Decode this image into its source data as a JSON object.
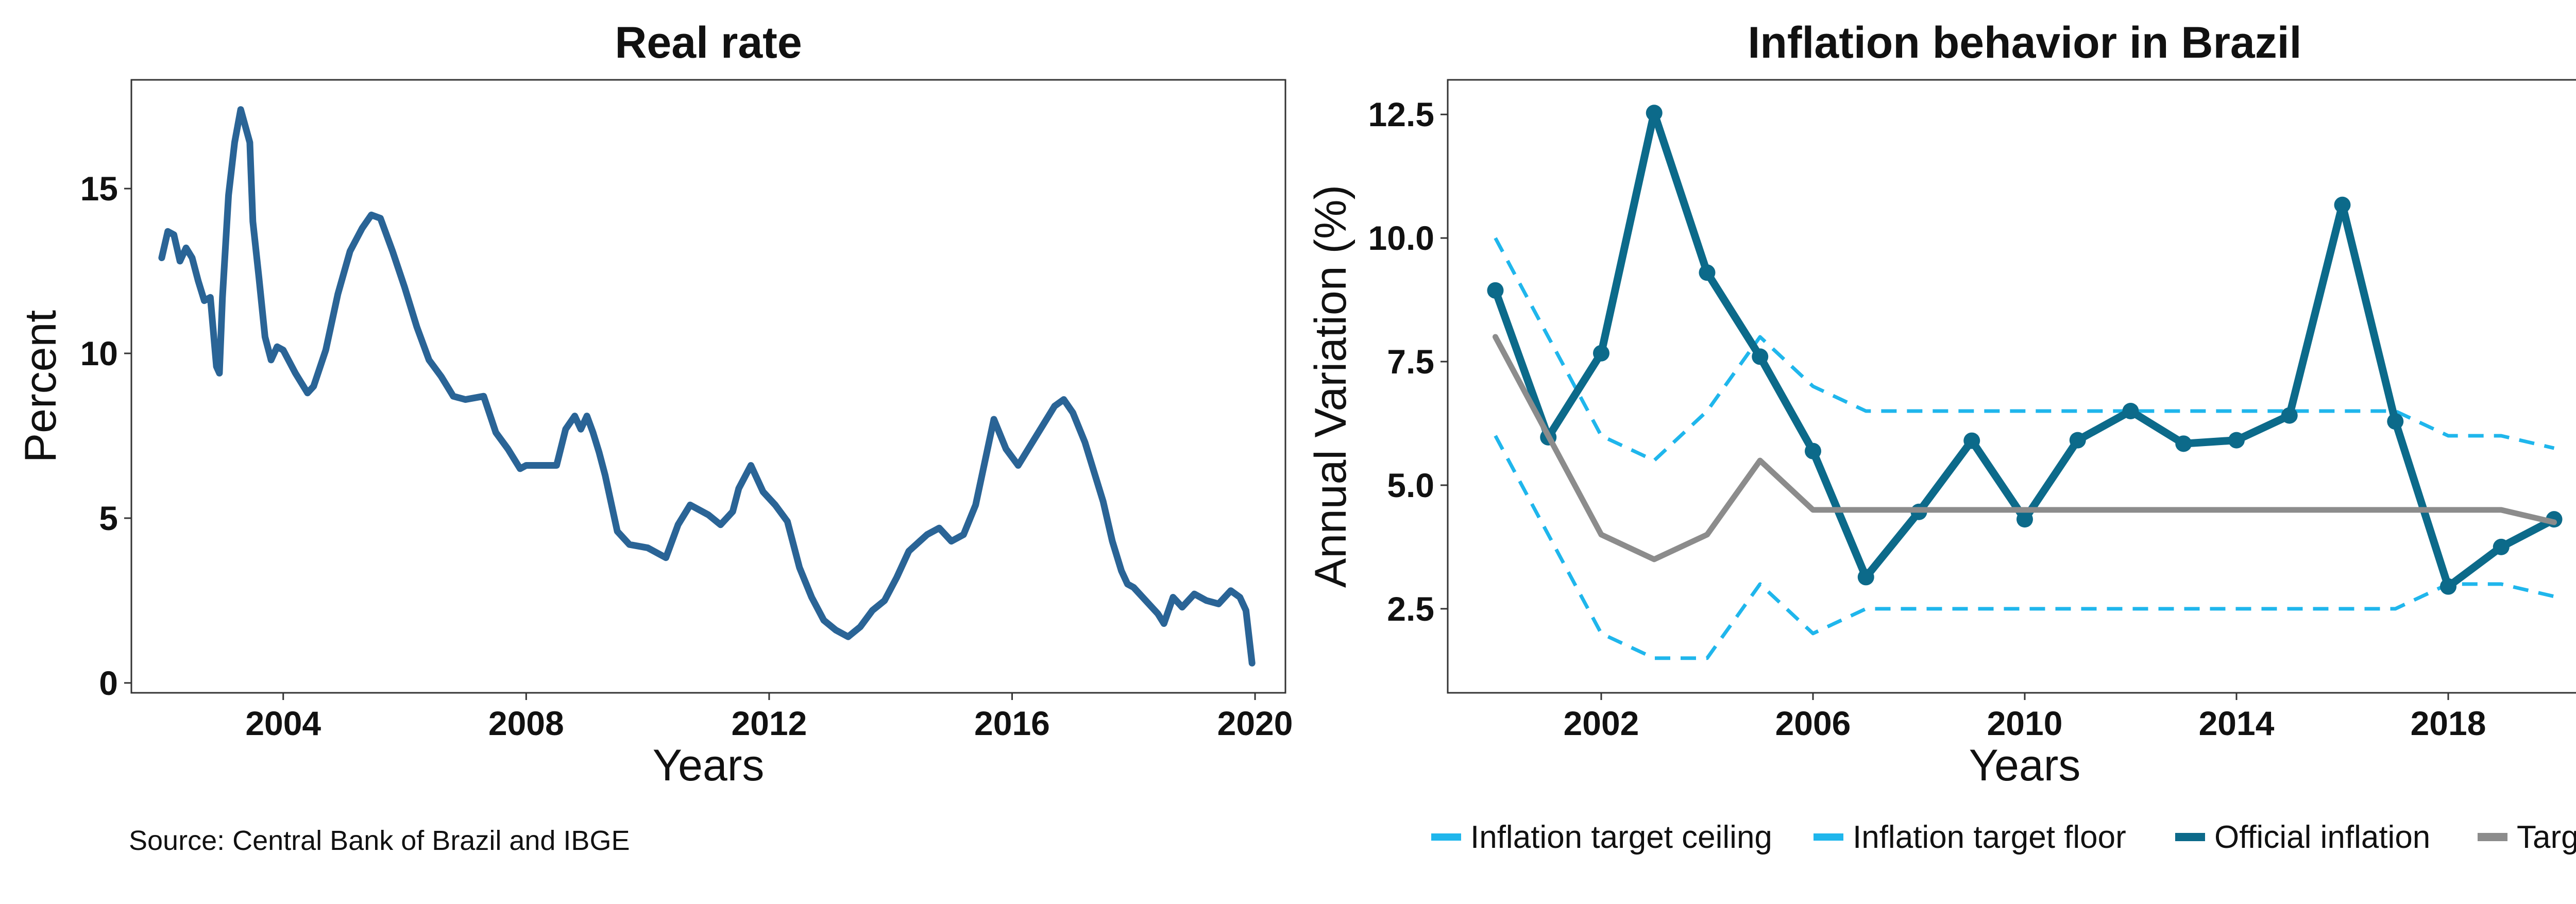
{
  "chart_data": [
    {
      "type": "line",
      "title": "Real rate",
      "xlabel": "Years",
      "ylabel": "Percent",
      "xlim": [
        2001.5,
        2020.5
      ],
      "ylim": [
        -0.3,
        18.3
      ],
      "xticks": [
        2004,
        2008,
        2012,
        2016,
        2020
      ],
      "yticks": [
        0,
        5,
        10,
        15
      ],
      "grid": false,
      "color": "#2a6496",
      "source": "Source: Central Bank of Brazil and IBGE",
      "series": [
        {
          "x": [
            2002.0,
            2002.1,
            2002.2,
            2002.3,
            2002.4,
            2002.5,
            2002.6,
            2002.7,
            2002.8,
            2002.9,
            2002.95,
            2003.0,
            2003.1,
            2003.2,
            2003.3,
            2003.45,
            2003.5,
            2003.6,
            2003.7,
            2003.8,
            2003.9,
            2004.0,
            2004.2,
            2004.4,
            2004.5,
            2004.7,
            2004.9,
            2005.1,
            2005.3,
            2005.45,
            2005.6,
            2005.8,
            2006.0,
            2006.2,
            2006.4,
            2006.6,
            2006.8,
            2007.0,
            2007.3,
            2007.5,
            2007.7,
            2007.9,
            2008.0,
            2008.2,
            2008.5,
            2008.65,
            2008.8,
            2008.9,
            2009.0,
            2009.1,
            2009.2,
            2009.3,
            2009.5,
            2009.7,
            2010.0,
            2010.3,
            2010.5,
            2010.7,
            2011.0,
            2011.2,
            2011.4,
            2011.5,
            2011.7,
            2011.9,
            2012.1,
            2012.3,
            2012.5,
            2012.7,
            2012.9,
            2013.1,
            2013.3,
            2013.5,
            2013.7,
            2013.9,
            2014.1,
            2014.3,
            2014.6,
            2014.8,
            2015.0,
            2015.2,
            2015.4,
            2015.55,
            2015.7,
            2015.9,
            2016.1,
            2016.3,
            2016.5,
            2016.7,
            2016.85,
            2017.0,
            2017.2,
            2017.4,
            2017.5,
            2017.65,
            2017.8,
            2017.9,
            2018.0,
            2018.2,
            2018.4,
            2018.5,
            2018.65,
            2018.8,
            2019.0,
            2019.2,
            2019.4,
            2019.6,
            2019.75,
            2019.85,
            2019.95
          ],
          "y": [
            12.9,
            13.7,
            13.6,
            12.8,
            13.2,
            12.9,
            12.2,
            11.6,
            11.7,
            9.6,
            9.4,
            11.7,
            14.8,
            16.4,
            17.4,
            16.4,
            14.0,
            12.3,
            10.5,
            9.8,
            10.2,
            10.1,
            9.4,
            8.8,
            9.0,
            10.1,
            11.8,
            13.1,
            13.8,
            14.2,
            14.1,
            13.1,
            12.0,
            10.8,
            9.8,
            9.3,
            8.7,
            8.6,
            8.7,
            7.6,
            7.1,
            6.5,
            6.6,
            6.6,
            6.6,
            7.7,
            8.1,
            7.7,
            8.1,
            7.6,
            7.0,
            6.3,
            4.6,
            4.2,
            4.1,
            3.8,
            4.8,
            5.4,
            5.1,
            4.8,
            5.2,
            5.9,
            6.6,
            5.8,
            5.4,
            4.9,
            3.5,
            2.6,
            1.9,
            1.6,
            1.4,
            1.7,
            2.2,
            2.5,
            3.2,
            4.0,
            4.5,
            4.7,
            4.3,
            4.5,
            5.4,
            6.7,
            8.0,
            7.1,
            6.6,
            7.2,
            7.8,
            8.4,
            8.6,
            8.2,
            7.3,
            6.1,
            5.5,
            4.3,
            3.4,
            3.0,
            2.9,
            2.5,
            2.1,
            1.8,
            2.6,
            2.3,
            2.7,
            2.5,
            2.4,
            2.8,
            2.6,
            2.2,
            0.6
          ]
        }
      ]
    },
    {
      "type": "line",
      "title": "Inflation behavior in Brazil",
      "xlabel": "Years",
      "ylabel": "Annual Variation (%)",
      "xlim": [
        1999.1,
        2020.9
      ],
      "ylim": [
        0.8,
        13.2
      ],
      "xticks": [
        2002,
        2006,
        2010,
        2014,
        2018
      ],
      "yticks": [
        2.5,
        5.0,
        7.5,
        10.0,
        12.5
      ],
      "grid": false,
      "legend": "bottom",
      "x": [
        2000,
        2001,
        2002,
        2003,
        2004,
        2005,
        2006,
        2007,
        2008,
        2009,
        2010,
        2011,
        2012,
        2013,
        2014,
        2015,
        2016,
        2017,
        2018,
        2019,
        2020
      ],
      "series": [
        {
          "name": "Inflation target ceiling",
          "color": "#1fb6ec",
          "style": "dashed",
          "values": [
            10.0,
            8.0,
            6.0,
            5.5,
            6.5,
            8.0,
            7.0,
            6.5,
            6.5,
            6.5,
            6.5,
            6.5,
            6.5,
            6.5,
            6.5,
            6.5,
            6.5,
            6.5,
            6.0,
            6.0,
            5.75
          ]
        },
        {
          "name": "Inflation target floor",
          "color": "#1fb6ec",
          "style": "dashed",
          "values": [
            6.0,
            4.0,
            2.0,
            1.5,
            1.5,
            3.0,
            2.0,
            2.5,
            2.5,
            2.5,
            2.5,
            2.5,
            2.5,
            2.5,
            2.5,
            2.5,
            2.5,
            2.5,
            3.0,
            3.0,
            2.75
          ]
        },
        {
          "name": "Official inflation",
          "color": "#0c6a8a",
          "style": "solid",
          "markers": true,
          "values": [
            8.94,
            5.97,
            7.67,
            12.53,
            9.3,
            7.6,
            5.69,
            3.14,
            4.46,
            5.9,
            4.31,
            5.91,
            6.5,
            5.84,
            5.91,
            6.41,
            10.67,
            6.29,
            2.95,
            3.75,
            4.31
          ]
        },
        {
          "name": "Target",
          "color": "#8c8c8c",
          "style": "solid",
          "values": [
            8.0,
            6.0,
            4.0,
            3.5,
            4.0,
            5.5,
            4.5,
            4.5,
            4.5,
            4.5,
            4.5,
            4.5,
            4.5,
            4.5,
            4.5,
            4.5,
            4.5,
            4.5,
            4.5,
            4.5,
            4.25
          ]
        }
      ]
    }
  ]
}
